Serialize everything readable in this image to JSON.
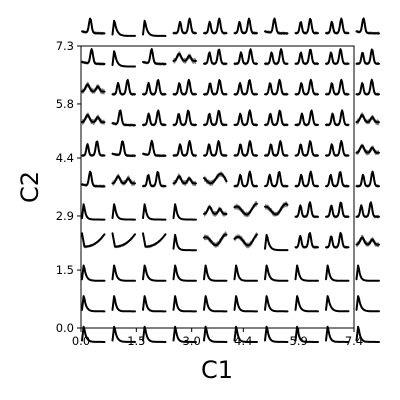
{
  "chart_data": {
    "type": "line",
    "description_kind": "grid of small response curves indexed by two parameters",
    "title": "",
    "xlabel": "C1",
    "ylabel": "C2",
    "xlim": [
      0.0,
      7.4
    ],
    "ylim": [
      0.0,
      7.3
    ],
    "x_ticks": [
      0.0,
      1.5,
      3.0,
      4.4,
      5.9,
      7.4
    ],
    "x_tick_labels": [
      "0.0",
      "1.5",
      "3.0",
      "4.4",
      "5.9",
      "7.4"
    ],
    "y_ticks": [
      0.0,
      1.5,
      2.9,
      4.4,
      5.8,
      7.3
    ],
    "y_tick_labels": [
      "0.0",
      "1.5",
      "2.9",
      "4.4",
      "5.8",
      "7.3"
    ],
    "grid": false,
    "legend": "none",
    "colors": {
      "line": "#000000",
      "band": "#7f7f7f"
    },
    "grid_shape": {
      "columns": 10,
      "rows": 11
    },
    "row_patterns": [
      [
        "peak",
        "decay",
        "decay",
        "multi",
        "multi",
        "multi",
        "peak",
        "multi",
        "multi",
        "peak"
      ],
      [
        "peak",
        "decay",
        "peak",
        "band",
        "multi",
        "multi",
        "multi",
        "multi",
        "multi",
        "multi"
      ],
      [
        "band",
        "multi",
        "multi",
        "multi",
        "multi",
        "multi",
        "multi",
        "multi",
        "multi",
        "multi"
      ],
      [
        "band",
        "peak",
        "multi",
        "multi",
        "multi",
        "multi",
        "multi",
        "multi",
        "multi",
        "band"
      ],
      [
        "multi",
        "peak",
        "peak",
        "multi",
        "multi",
        "multi",
        "multi",
        "multi",
        "multi",
        "band"
      ],
      [
        "peak",
        "band",
        "multi",
        "band",
        "wave",
        "multi",
        "multi",
        "multi",
        "multi",
        "multi"
      ],
      [
        "decay",
        "decay",
        "decay",
        "decay",
        "band",
        "wave",
        "wave",
        "multi",
        "multi",
        "multi"
      ],
      [
        "rise",
        "rise",
        "rise",
        "decay",
        "wave",
        "wave",
        "decay",
        "multi",
        "multi",
        "band"
      ],
      [
        "decay",
        "decay",
        "decay",
        "decay",
        "decay",
        "decay",
        "decay",
        "decay",
        "decay",
        "decay"
      ],
      [
        "decay",
        "decay",
        "decay",
        "decay",
        "decay",
        "decay",
        "decay",
        "decay",
        "decay",
        "decay"
      ],
      [
        "decay",
        "decay",
        "decay",
        "decay",
        "decay",
        "decay",
        "decay",
        "decay",
        "decay",
        "decay"
      ]
    ]
  }
}
